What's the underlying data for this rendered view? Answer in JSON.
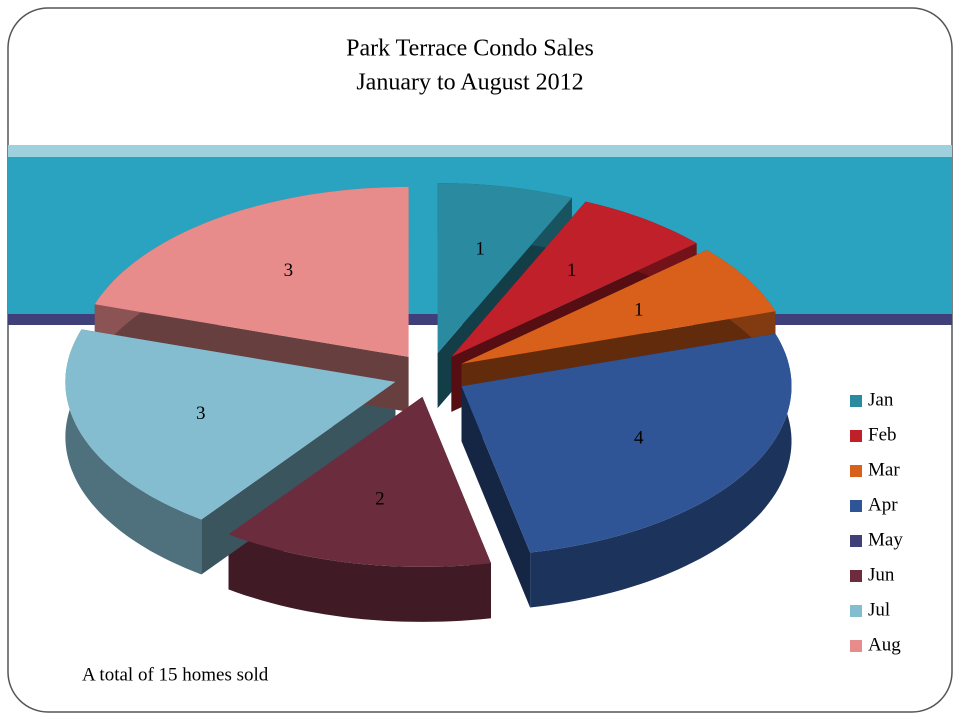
{
  "chart_data": {
    "type": "pie",
    "title": "Park Terrace Condo Sales",
    "subtitle": "January to August 2012",
    "categories": [
      "Jan",
      "Feb",
      "Mar",
      "Apr",
      "May",
      "Jun",
      "Jul",
      "Aug"
    ],
    "values": [
      1,
      1,
      1,
      4,
      0,
      2,
      3,
      3
    ],
    "colors": [
      "#2a8aa0",
      "#c0202a",
      "#d9601a",
      "#2f5597",
      "#3f3f7a",
      "#6b2c3e",
      "#84bcd0",
      "#e88b8b"
    ],
    "legend": "right",
    "annotation": "A total of 15 homes sold"
  }
}
